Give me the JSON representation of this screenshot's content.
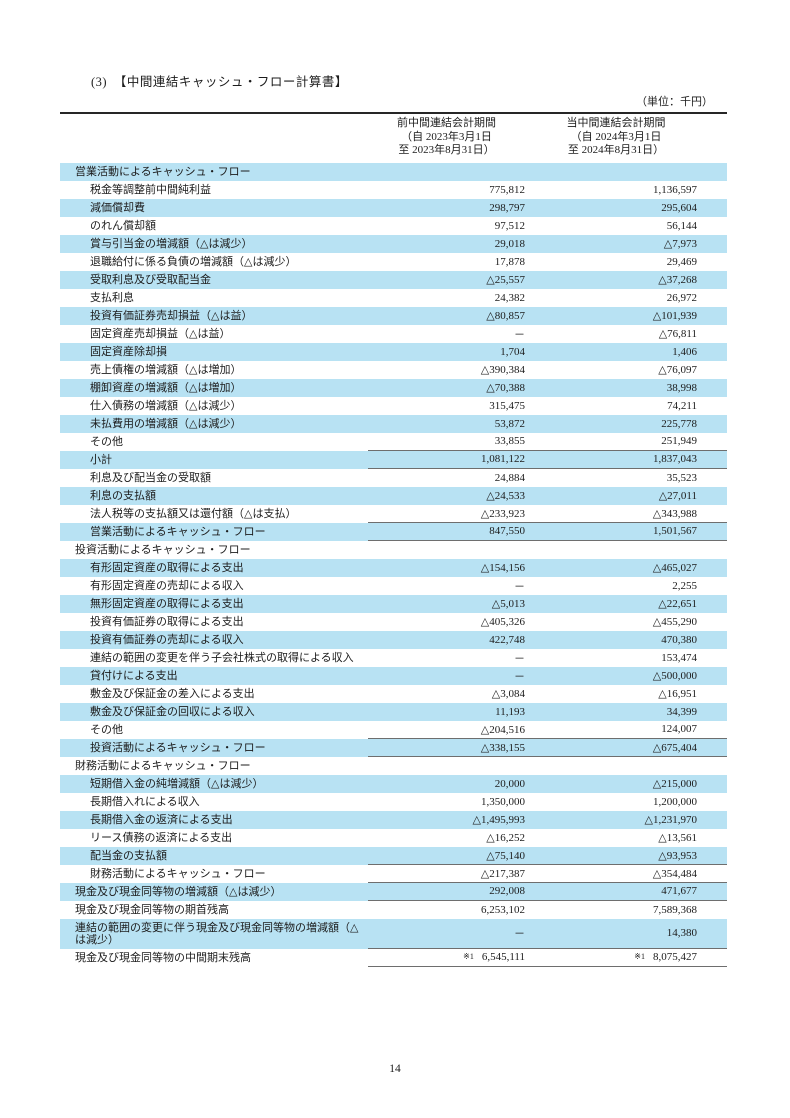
{
  "page": {
    "title": "(3)　【中間連結キャッシュ・フロー計算書】",
    "unit_note": "（単位：千円）",
    "page_number": "14"
  },
  "table": {
    "columns": [
      {
        "title": "前中間連結会計期間",
        "period_from": "（自 2023年3月1日",
        "period_to": "至 2023年8月31日）"
      },
      {
        "title": "当中間連結会計期間",
        "period_from": "（自 2024年3月1日",
        "period_to": "至 2024年8月31日）"
      }
    ],
    "note_marker": "※1",
    "rows": [
      {
        "label": "営業活動によるキャッシュ・フロー",
        "lv": 0,
        "v1": "",
        "v2": "",
        "shade": true,
        "rule": false
      },
      {
        "label": "税金等調整前中間純利益",
        "lv": 1,
        "v1": "775,812",
        "v2": "1,136,597",
        "shade": false,
        "rule": false
      },
      {
        "label": "減価償却費",
        "lv": 1,
        "v1": "298,797",
        "v2": "295,604",
        "shade": true,
        "rule": false
      },
      {
        "label": "のれん償却額",
        "lv": 1,
        "v1": "97,512",
        "v2": "56,144",
        "shade": false,
        "rule": false
      },
      {
        "label": "賞与引当金の増減額（△は減少）",
        "lv": 1,
        "v1": "29,018",
        "v2": "△7,973",
        "shade": true,
        "rule": false
      },
      {
        "label": "退職給付に係る負債の増減額（△は減少）",
        "lv": 1,
        "v1": "17,878",
        "v2": "29,469",
        "shade": false,
        "rule": false
      },
      {
        "label": "受取利息及び受取配当金",
        "lv": 1,
        "v1": "△25,557",
        "v2": "△37,268",
        "shade": true,
        "rule": false
      },
      {
        "label": "支払利息",
        "lv": 1,
        "v1": "24,382",
        "v2": "26,972",
        "shade": false,
        "rule": false
      },
      {
        "label": "投資有価証券売却損益（△は益）",
        "lv": 1,
        "v1": "△80,857",
        "v2": "△101,939",
        "shade": true,
        "rule": false
      },
      {
        "label": "固定資産売却損益（△は益）",
        "lv": 1,
        "v1": "－",
        "v2": "△76,811",
        "shade": false,
        "rule": false
      },
      {
        "label": "固定資産除却損",
        "lv": 1,
        "v1": "1,704",
        "v2": "1,406",
        "shade": true,
        "rule": false
      },
      {
        "label": "売上債権の増減額（△は増加）",
        "lv": 1,
        "v1": "△390,384",
        "v2": "△76,097",
        "shade": false,
        "rule": false
      },
      {
        "label": "棚卸資産の増減額（△は増加）",
        "lv": 1,
        "v1": "△70,388",
        "v2": "38,998",
        "shade": true,
        "rule": false
      },
      {
        "label": "仕入債務の増減額（△は減少）",
        "lv": 1,
        "v1": "315,475",
        "v2": "74,211",
        "shade": false,
        "rule": false
      },
      {
        "label": "未払費用の増減額（△は減少）",
        "lv": 1,
        "v1": "53,872",
        "v2": "225,778",
        "shade": true,
        "rule": false
      },
      {
        "label": "その他",
        "lv": 1,
        "v1": "33,855",
        "v2": "251,949",
        "shade": false,
        "rule": true
      },
      {
        "label": "小計",
        "lv": 1,
        "v1": "1,081,122",
        "v2": "1,837,043",
        "shade": true,
        "rule": true
      },
      {
        "label": "利息及び配当金の受取額",
        "lv": 1,
        "v1": "24,884",
        "v2": "35,523",
        "shade": false,
        "rule": false
      },
      {
        "label": "利息の支払額",
        "lv": 1,
        "v1": "△24,533",
        "v2": "△27,011",
        "shade": true,
        "rule": false
      },
      {
        "label": "法人税等の支払額又は還付額（△は支払）",
        "lv": 1,
        "v1": "△233,923",
        "v2": "△343,988",
        "shade": false,
        "rule": true
      },
      {
        "label": "営業活動によるキャッシュ・フロー",
        "lv": 1,
        "v1": "847,550",
        "v2": "1,501,567",
        "shade": true,
        "rule": true
      },
      {
        "label": "投資活動によるキャッシュ・フロー",
        "lv": 0,
        "v1": "",
        "v2": "",
        "shade": false,
        "rule": false
      },
      {
        "label": "有形固定資産の取得による支出",
        "lv": 1,
        "v1": "△154,156",
        "v2": "△465,027",
        "shade": true,
        "rule": false
      },
      {
        "label": "有形固定資産の売却による収入",
        "lv": 1,
        "v1": "－",
        "v2": "2,255",
        "shade": false,
        "rule": false
      },
      {
        "label": "無形固定資産の取得による支出",
        "lv": 1,
        "v1": "△5,013",
        "v2": "△22,651",
        "shade": true,
        "rule": false
      },
      {
        "label": "投資有価証券の取得による支出",
        "lv": 1,
        "v1": "△405,326",
        "v2": "△455,290",
        "shade": false,
        "rule": false
      },
      {
        "label": "投資有価証券の売却による収入",
        "lv": 1,
        "v1": "422,748",
        "v2": "470,380",
        "shade": true,
        "rule": false
      },
      {
        "label": "連結の範囲の変更を伴う子会社株式の取得による収入",
        "lv": 1,
        "v1": "－",
        "v2": "153,474",
        "shade": false,
        "rule": false
      },
      {
        "label": "貸付けによる支出",
        "lv": 1,
        "v1": "－",
        "v2": "△500,000",
        "shade": true,
        "rule": false
      },
      {
        "label": "敷金及び保証金の差入による支出",
        "lv": 1,
        "v1": "△3,084",
        "v2": "△16,951",
        "shade": false,
        "rule": false
      },
      {
        "label": "敷金及び保証金の回収による収入",
        "lv": 1,
        "v1": "11,193",
        "v2": "34,399",
        "shade": true,
        "rule": false
      },
      {
        "label": "その他",
        "lv": 1,
        "v1": "△204,516",
        "v2": "124,007",
        "shade": false,
        "rule": true
      },
      {
        "label": "投資活動によるキャッシュ・フロー",
        "lv": 1,
        "v1": "△338,155",
        "v2": "△675,404",
        "shade": true,
        "rule": true
      },
      {
        "label": "財務活動によるキャッシュ・フロー",
        "lv": 0,
        "v1": "",
        "v2": "",
        "shade": false,
        "rule": false
      },
      {
        "label": "短期借入金の純増減額（△は減少）",
        "lv": 1,
        "v1": "20,000",
        "v2": "△215,000",
        "shade": true,
        "rule": false
      },
      {
        "label": "長期借入れによる収入",
        "lv": 1,
        "v1": "1,350,000",
        "v2": "1,200,000",
        "shade": false,
        "rule": false
      },
      {
        "label": "長期借入金の返済による支出",
        "lv": 1,
        "v1": "△1,495,993",
        "v2": "△1,231,970",
        "shade": true,
        "rule": false
      },
      {
        "label": "リース債務の返済による支出",
        "lv": 1,
        "v1": "△16,252",
        "v2": "△13,561",
        "shade": false,
        "rule": false
      },
      {
        "label": "配当金の支払額",
        "lv": 1,
        "v1": "△75,140",
        "v2": "△93,953",
        "shade": true,
        "rule": true
      },
      {
        "label": "財務活動によるキャッシュ・フロー",
        "lv": 1,
        "v1": "△217,387",
        "v2": "△354,484",
        "shade": false,
        "rule": true
      },
      {
        "label": "現金及び現金同等物の増減額（△は減少）",
        "lv": 0,
        "v1": "292,008",
        "v2": "471,677",
        "shade": true,
        "rule": true
      },
      {
        "label": "現金及び現金同等物の期首残高",
        "lv": 0,
        "v1": "6,253,102",
        "v2": "7,589,368",
        "shade": false,
        "rule": false
      },
      {
        "label": "連結の範囲の変更に伴う現金及び現金同等物の増減額（△は減少）",
        "lv": 0,
        "v1": "－",
        "v2": "14,380",
        "shade": true,
        "rule": true
      },
      {
        "label": "現金及び現金同等物の中間期末残高",
        "lv": 0,
        "v1": "6,545,111",
        "v2": "8,075,427",
        "shade": false,
        "rule": true,
        "note": true
      }
    ]
  }
}
